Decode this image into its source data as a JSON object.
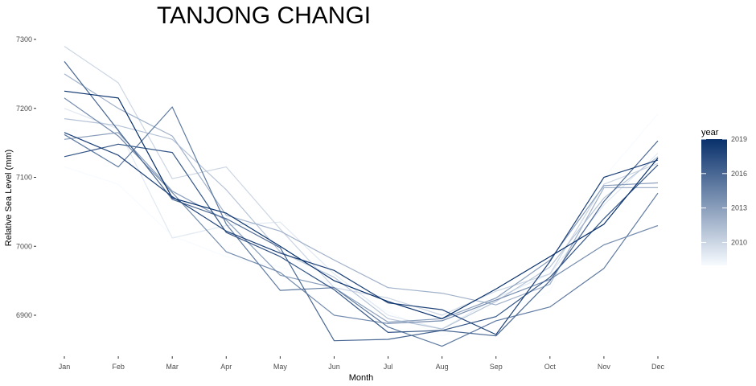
{
  "chart_data": {
    "type": "line",
    "title": "TANJONG CHANGI",
    "xlabel": "Month",
    "ylabel": "Relative Sea Level (mm)",
    "categories": [
      "Jan",
      "Feb",
      "Mar",
      "Apr",
      "May",
      "Jun",
      "Jul",
      "Aug",
      "Sep",
      "Oct",
      "Nov",
      "Dec"
    ],
    "ylim": [
      6845,
      7305
    ],
    "yticks": [
      6900,
      7000,
      7100,
      7200,
      7300
    ],
    "grid": false,
    "legend": {
      "title": "year",
      "placement": "right",
      "type": "colorbar",
      "range": [
        2008,
        2019
      ],
      "ticks": [
        2010,
        2013,
        2016,
        2019
      ],
      "low_color": "#f7fbff",
      "high_color": "#08306b"
    },
    "series": [
      {
        "year": 2008,
        "values": [
          7115,
          7090,
          7015,
          6985,
          6970,
          6945,
          6905,
          6870,
          6900,
          6935,
          7100,
          7192
        ]
      },
      {
        "year": 2009,
        "values": [
          7200,
          7170,
          7012,
          7030,
          7035,
          6960,
          6900,
          6880,
          6925,
          6960,
          7060,
          7135
        ]
      },
      {
        "year": 2010,
        "values": [
          7290,
          7237,
          7098,
          7115,
          7025,
          6940,
          6925,
          6900,
          6935,
          6960,
          7090,
          7120
        ]
      },
      {
        "year": 2011,
        "values": [
          7185,
          7175,
          7155,
          7082,
          6992,
          6955,
          6895,
          6880,
          6920,
          6970,
          7070,
          7130
        ]
      },
      {
        "year": 2012,
        "values": [
          7250,
          7200,
          7160,
          7045,
          7022,
          6980,
          6940,
          6932,
          6915,
          6945,
          7085,
          7085
        ]
      },
      {
        "year": 2013,
        "values": [
          7155,
          7165,
          7080,
          7038,
          6958,
          6940,
          6890,
          6895,
          6925,
          6980,
          7088,
          7092
        ]
      },
      {
        "year": 2014,
        "values": [
          7215,
          7160,
          7078,
          6992,
          6962,
          6900,
          6888,
          6892,
          6922,
          6952,
          7002,
          7030
        ]
      },
      {
        "year": 2015,
        "values": [
          7162,
          7115,
          7202,
          7032,
          6936,
          6940,
          6883,
          6855,
          6892,
          6912,
          6968,
          7077
        ]
      },
      {
        "year": 2016,
        "values": [
          7268,
          7168,
          7068,
          7040,
          6998,
          6863,
          6865,
          6878,
          6870,
          6950,
          7065,
          7153
        ]
      },
      {
        "year": 2017,
        "values": [
          7130,
          7148,
          7136,
          7020,
          6985,
          6937,
          6875,
          6878,
          6898,
          6955,
          7040,
          7118
        ]
      },
      {
        "year": 2018,
        "values": [
          7165,
          7132,
          7072,
          7022,
          6990,
          6965,
          6918,
          6908,
          6872,
          6978,
          7100,
          7125
        ]
      },
      {
        "year": 2019,
        "values": [
          7225,
          7215,
          7070,
          7048,
          7000,
          6950,
          6920,
          6895,
          6938,
          6985,
          7032,
          7128
        ]
      }
    ]
  }
}
